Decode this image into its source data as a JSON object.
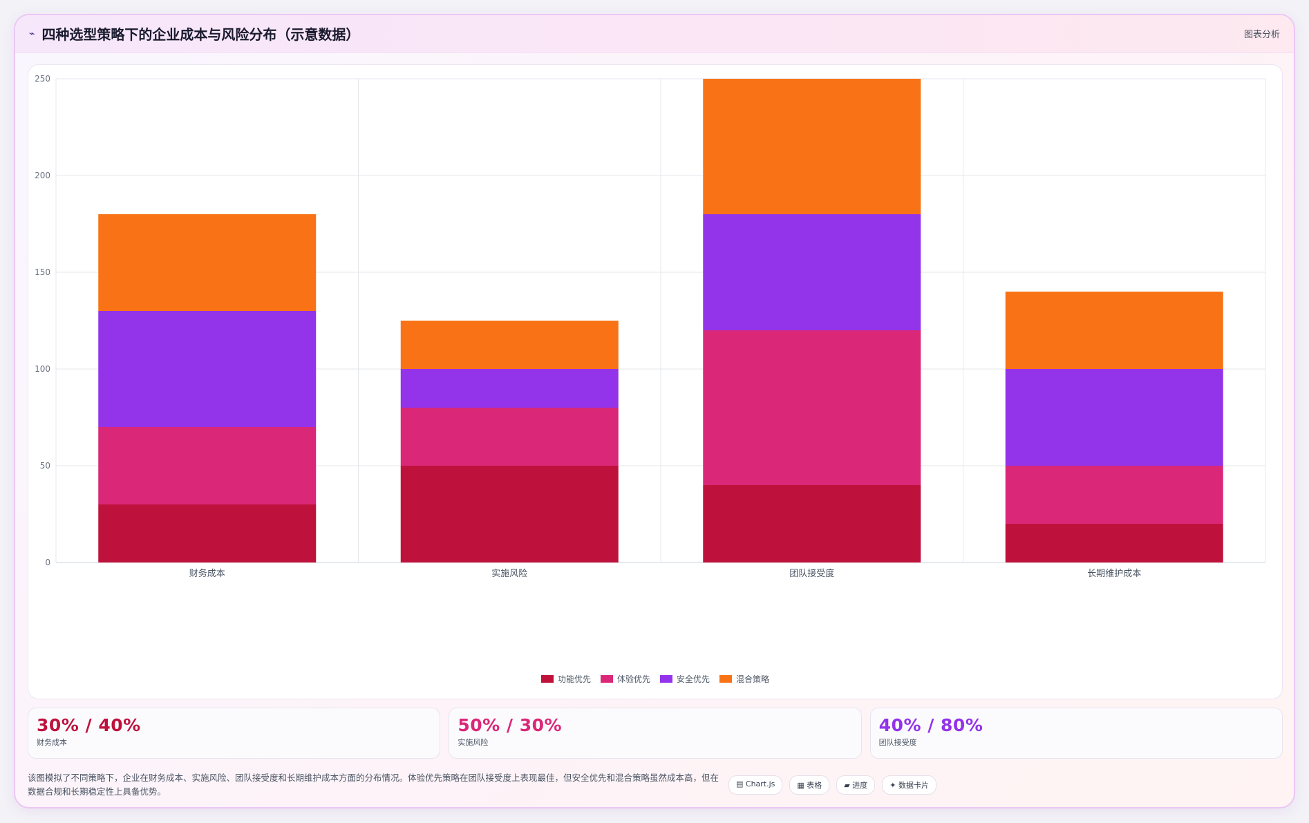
{
  "header": {
    "icon": "trend-icon",
    "icon_glyph": "⌁",
    "title": "四种选型策略下的企业成本与风险分布（示意数据）",
    "link_label": "图表分析"
  },
  "chart_data": {
    "type": "bar",
    "stacked": true,
    "categories": [
      "财务成本",
      "实施风险",
      "团队接受度",
      "长期维护成本"
    ],
    "series": [
      {
        "name": "功能优先",
        "color": "#be123c",
        "values": [
          30,
          50,
          40,
          20
        ]
      },
      {
        "name": "体验优先",
        "color": "#db2777",
        "values": [
          40,
          30,
          80,
          30
        ]
      },
      {
        "name": "安全优先",
        "color": "#9333ea",
        "values": [
          60,
          20,
          60,
          50
        ]
      },
      {
        "name": "混合策略",
        "color": "#f97316",
        "values": [
          50,
          25,
          70,
          40
        ]
      }
    ],
    "ylim": [
      0,
      250
    ],
    "yticks": [
      "0",
      "50",
      "100",
      "150",
      "200",
      "250"
    ],
    "grid": true,
    "legend_position": "bottom"
  },
  "stats": [
    {
      "value": "30% / 40%",
      "label": "财务成本",
      "color": "#be123c"
    },
    {
      "value": "50% / 30%",
      "label": "实施风险",
      "color": "#db2777"
    },
    {
      "value": "40% / 80%",
      "label": "团队接受度",
      "color": "#9333ea"
    }
  ],
  "footer": {
    "text": "该图模拟了不同策略下，企业在财务成本、实施风险、团队接受度和长期维护成本方面的分布情况。体验优先策略在团队接受度上表现最佳，但安全优先和混合策略虽然成本高，但在数据合规和长期稳定性上具备优势。",
    "pills": [
      {
        "icon": "chart-icon",
        "glyph": "▤",
        "label": "Chart.js"
      },
      {
        "icon": "table-icon",
        "glyph": "▦",
        "label": "表格"
      },
      {
        "icon": "progress-icon",
        "glyph": "▰",
        "label": "进度"
      },
      {
        "icon": "sparkle-icon",
        "glyph": "✦",
        "label": "数据卡片"
      }
    ]
  }
}
